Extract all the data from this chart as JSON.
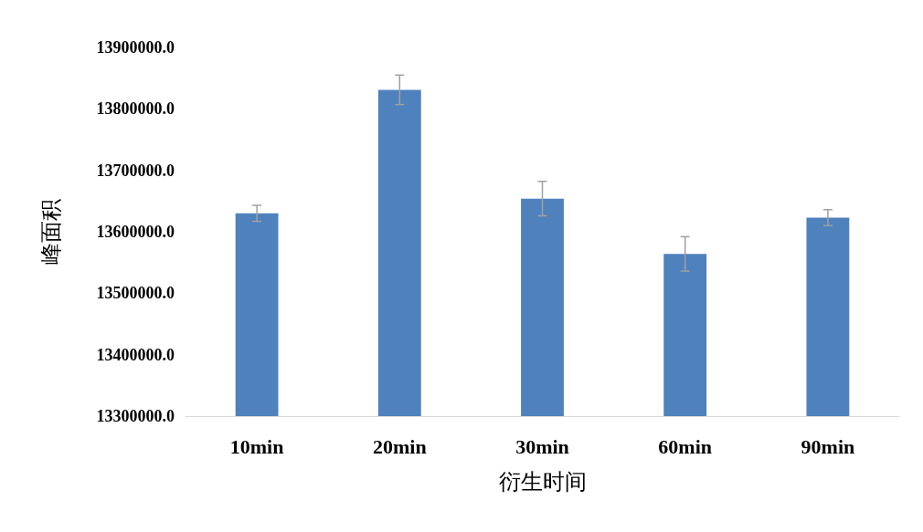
{
  "chart_data": {
    "type": "bar",
    "xlabel": "衍生时间",
    "ylabel": "峰面积",
    "categories": [
      "10min",
      "20min",
      "30min",
      "60min",
      "90min"
    ],
    "series": [
      {
        "color": "#4f81bd",
        "values": [
          13630000,
          13831000,
          13654000,
          13564000,
          13623000
        ],
        "errors": [
          13000,
          24000,
          28000,
          28000,
          13000
        ]
      }
    ],
    "ylim": [
      13300000,
      13900000
    ],
    "yticks": [
      {
        "value": 13300000,
        "label": "13300000.0"
      },
      {
        "value": 13400000,
        "label": "13400000.0"
      },
      {
        "value": 13500000,
        "label": "13500000.0"
      },
      {
        "value": 13600000,
        "label": "13600000.0"
      },
      {
        "value": 13700000,
        "label": "13700000.0"
      },
      {
        "value": 13800000,
        "label": "13800000.0"
      },
      {
        "value": 13900000,
        "label": "13900000.0"
      }
    ],
    "grid": false
  }
}
